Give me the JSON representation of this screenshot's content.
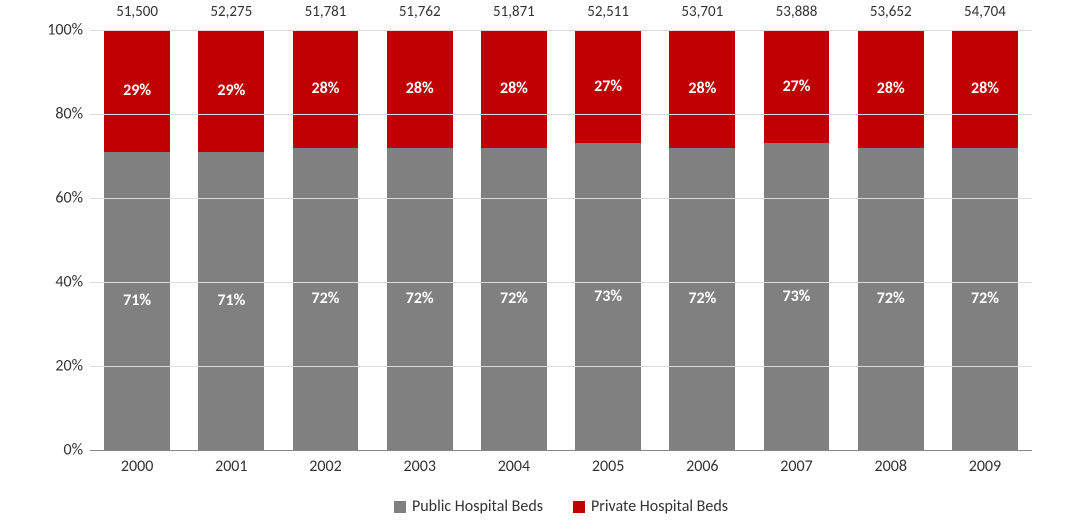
{
  "chart": {
    "type": "stacked-bar-100pct",
    "background_color": "#ffffff",
    "grid_color": "#d9d9d9",
    "axis_color": "#888888",
    "text_color": "#333333",
    "font_family": "Calibri, Arial, sans-serif",
    "label_fontsize": 16,
    "total_label_fontsize": 15,
    "value_fontsize": 16,
    "value_fontweight": "bold",
    "value_color": "#ffffff",
    "bar_width_pct": 70,
    "ylim": [
      0,
      100
    ],
    "ytick_step": 20,
    "y_ticks": [
      {
        "v": 0,
        "label": "0%"
      },
      {
        "v": 20,
        "label": "20%"
      },
      {
        "v": 40,
        "label": "40%"
      },
      {
        "v": 60,
        "label": "60%"
      },
      {
        "v": 80,
        "label": "80%"
      },
      {
        "v": 100,
        "label": "100%"
      }
    ],
    "series": [
      {
        "key": "public",
        "name": "Public Hospital Beds",
        "color": "#808080"
      },
      {
        "key": "private",
        "name": "Private Hospital Beds",
        "color": "#c00000"
      }
    ],
    "legend_position": "bottom-center",
    "legend_marker": "square",
    "categories": [
      "2000",
      "2001",
      "2002",
      "2003",
      "2004",
      "2005",
      "2006",
      "2007",
      "2008",
      "2009"
    ],
    "totals": [
      "51,500",
      "52,275",
      "51,781",
      "51,762",
      "51,871",
      "52,511",
      "53,701",
      "53,888",
      "53,652",
      "54,704"
    ],
    "data": [
      {
        "public": 71,
        "private": 29
      },
      {
        "public": 71,
        "private": 29
      },
      {
        "public": 72,
        "private": 28
      },
      {
        "public": 72,
        "private": 28
      },
      {
        "public": 72,
        "private": 28
      },
      {
        "public": 73,
        "private": 27
      },
      {
        "public": 72,
        "private": 28
      },
      {
        "public": 73,
        "private": 27
      },
      {
        "public": 72,
        "private": 28
      },
      {
        "public": 72,
        "private": 28
      }
    ]
  }
}
